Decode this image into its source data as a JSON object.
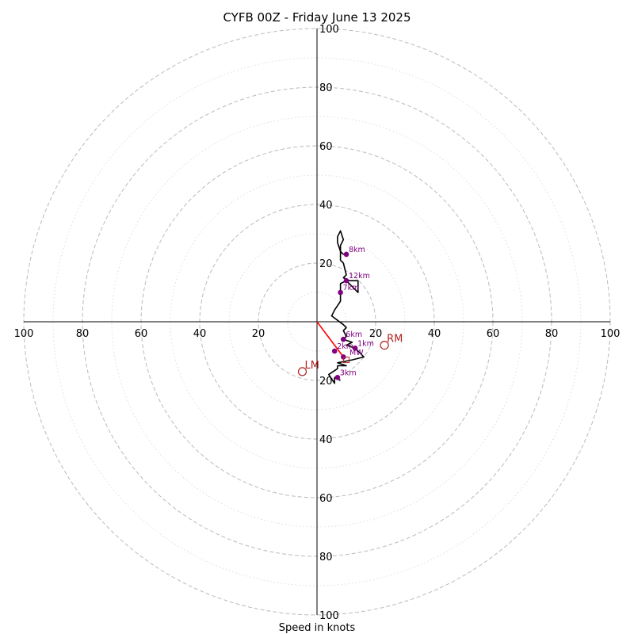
{
  "chart_data": {
    "type": "hodograph",
    "title": "CYFB 00Z - Friday June 13 2025",
    "xlabel": "Speed in knots",
    "ring_max": 100,
    "major_rings": [
      20,
      40,
      60,
      80,
      100
    ],
    "minor_rings": [
      10,
      30,
      50,
      70,
      90
    ],
    "tick_labels": {
      "top": [
        "100",
        "80",
        "60",
        "40",
        "20"
      ],
      "bottom": [
        "20",
        "40",
        "60",
        "80",
        "100"
      ],
      "left": [
        "100",
        "80",
        "60",
        "40",
        "20"
      ],
      "right": [
        "20",
        "40",
        "60",
        "80",
        "100"
      ]
    },
    "hodograph_trace_uv": [
      [
        8,
        -20
      ],
      [
        6,
        -19
      ],
      [
        6,
        -21
      ],
      [
        4,
        -18
      ],
      [
        7,
        -16
      ],
      [
        7,
        -15
      ],
      [
        10,
        -15
      ],
      [
        7,
        -14
      ],
      [
        12,
        -13
      ],
      [
        16,
        -12
      ],
      [
        13,
        -9
      ],
      [
        10,
        -8
      ],
      [
        12,
        -7
      ],
      [
        9,
        -6
      ],
      [
        10,
        -5
      ],
      [
        9,
        -3
      ],
      [
        10,
        -2
      ],
      [
        9,
        -1
      ],
      [
        5,
        2
      ],
      [
        6,
        4
      ],
      [
        8,
        7
      ],
      [
        8,
        10
      ],
      [
        8,
        13
      ],
      [
        10,
        14
      ],
      [
        12,
        12
      ],
      [
        14,
        10
      ],
      [
        14,
        14
      ],
      [
        11,
        14
      ],
      [
        9,
        15
      ],
      [
        10,
        16
      ],
      [
        9,
        20
      ],
      [
        8,
        21
      ],
      [
        8,
        26
      ],
      [
        9,
        28
      ],
      [
        8,
        31
      ],
      [
        7,
        29
      ],
      [
        7,
        27
      ],
      [
        8,
        24
      ],
      [
        9,
        23
      ],
      [
        10,
        23
      ]
    ],
    "height_markers": [
      {
        "label": "",
        "u": 9,
        "v": -12
      },
      {
        "label": "1km",
        "u": 13,
        "v": -9
      },
      {
        "label": "2km",
        "u": 6,
        "v": -10
      },
      {
        "label": "3km",
        "u": 7,
        "v": -19
      },
      {
        "label": "6km",
        "u": 9,
        "v": -6
      },
      {
        "label": "7km",
        "u": 8,
        "v": 10
      },
      {
        "label": "8km",
        "u": 10,
        "v": 23
      },
      {
        "label": "12km",
        "u": 10,
        "v": 14
      }
    ],
    "storm_motion": [
      {
        "label": "RM",
        "u": 23,
        "v": -8
      },
      {
        "label": "LM",
        "u": -5,
        "v": -17
      },
      {
        "label": "MW",
        "u": 10,
        "v": -13
      }
    ],
    "motion_vector_uv": [
      9,
      -12
    ],
    "colors": {
      "trace": "#000000",
      "markers": "#800080",
      "storm_motion": "#b22222",
      "motion_vector": "#ff0000",
      "grid": "#bbbbbb",
      "axes": "#000000"
    }
  }
}
